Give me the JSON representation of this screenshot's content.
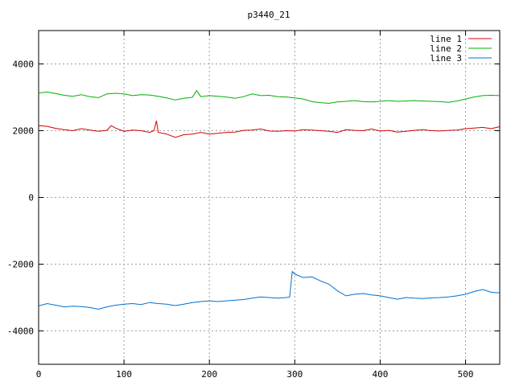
{
  "chart_data": {
    "type": "line",
    "title": "p3440_21",
    "xlabel": "",
    "ylabel": "",
    "xlim": [
      0,
      540
    ],
    "ylim": [
      -5000,
      5000
    ],
    "xticks": [
      0,
      100,
      200,
      300,
      400,
      500
    ],
    "yticks": [
      -4000,
      -2000,
      0,
      2000,
      4000
    ],
    "grid": true,
    "legend_position": "top-right",
    "series": [
      {
        "name": "line 1",
        "color": "#d00000",
        "x": [
          0,
          10,
          20,
          30,
          40,
          50,
          60,
          70,
          80,
          85,
          90,
          100,
          110,
          120,
          130,
          135,
          138,
          140,
          150,
          160,
          170,
          180,
          190,
          200,
          210,
          220,
          230,
          240,
          250,
          260,
          270,
          280,
          290,
          300,
          310,
          320,
          330,
          340,
          350,
          360,
          370,
          380,
          390,
          400,
          410,
          420,
          430,
          440,
          450,
          460,
          470,
          480,
          490,
          500,
          510,
          520,
          530,
          540
        ],
        "y": [
          2150,
          2130,
          2070,
          2030,
          2000,
          2060,
          2020,
          1980,
          2010,
          2150,
          2080,
          1980,
          2020,
          2000,
          1950,
          2000,
          2300,
          1950,
          1900,
          1800,
          1880,
          1900,
          1950,
          1900,
          1920,
          1950,
          1960,
          2010,
          2020,
          2050,
          1990,
          1980,
          2000,
          1990,
          2030,
          2020,
          2000,
          1980,
          1950,
          2030,
          2010,
          2000,
          2050,
          1990,
          2010,
          1960,
          1980,
          2010,
          2030,
          2000,
          1990,
          2010,
          2020,
          2060,
          2080,
          2100,
          2060,
          2120
        ]
      },
      {
        "name": "line 2",
        "color": "#00b000",
        "x": [
          0,
          10,
          20,
          30,
          40,
          50,
          60,
          70,
          80,
          90,
          100,
          110,
          120,
          130,
          140,
          150,
          160,
          170,
          180,
          185,
          190,
          200,
          210,
          220,
          230,
          240,
          250,
          260,
          270,
          280,
          290,
          300,
          310,
          320,
          330,
          340,
          350,
          360,
          370,
          380,
          390,
          400,
          410,
          420,
          430,
          440,
          450,
          460,
          470,
          480,
          490,
          500,
          510,
          520,
          530,
          540
        ],
        "y": [
          3130,
          3160,
          3110,
          3060,
          3030,
          3080,
          3020,
          2990,
          3100,
          3120,
          3100,
          3050,
          3080,
          3070,
          3030,
          2980,
          2920,
          2970,
          3000,
          3200,
          3020,
          3050,
          3030,
          3010,
          2970,
          3020,
          3100,
          3050,
          3060,
          3020,
          3010,
          2980,
          2950,
          2870,
          2840,
          2820,
          2860,
          2880,
          2900,
          2870,
          2860,
          2880,
          2900,
          2880,
          2890,
          2900,
          2890,
          2880,
          2870,
          2850,
          2890,
          2950,
          3010,
          3050,
          3060,
          3050
        ]
      },
      {
        "name": "line 3",
        "color": "#0070d0",
        "x": [
          0,
          10,
          20,
          30,
          40,
          50,
          60,
          70,
          80,
          90,
          100,
          110,
          120,
          130,
          140,
          150,
          160,
          170,
          180,
          190,
          200,
          210,
          220,
          230,
          240,
          250,
          260,
          270,
          280,
          290,
          294,
          297,
          300,
          310,
          320,
          330,
          340,
          350,
          360,
          370,
          380,
          390,
          400,
          410,
          420,
          430,
          440,
          450,
          460,
          470,
          480,
          490,
          500,
          510,
          520,
          530,
          540
        ],
        "y": [
          -3250,
          -3180,
          -3230,
          -3280,
          -3260,
          -3270,
          -3300,
          -3350,
          -3280,
          -3230,
          -3200,
          -3180,
          -3210,
          -3150,
          -3180,
          -3200,
          -3240,
          -3200,
          -3150,
          -3120,
          -3100,
          -3120,
          -3100,
          -3080,
          -3060,
          -3020,
          -2980,
          -3000,
          -3020,
          -3000,
          -2980,
          -2220,
          -2300,
          -2400,
          -2380,
          -2500,
          -2600,
          -2800,
          -2950,
          -2900,
          -2880,
          -2920,
          -2950,
          -3000,
          -3050,
          -3000,
          -3020,
          -3030,
          -3010,
          -3000,
          -2980,
          -2950,
          -2900,
          -2820,
          -2760,
          -2840,
          -2860
        ]
      }
    ]
  }
}
